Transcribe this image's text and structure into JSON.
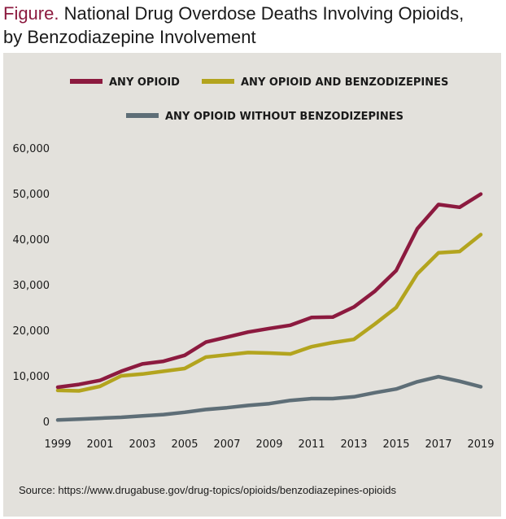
{
  "figure": {
    "label": "Figure.",
    "title_line1": "National Drug Overdose Deaths Involving Opioids,",
    "title_line2": "by Benzodiazepine Involvement",
    "source": "Source: https://www.drugabuse.gov/drug-topics/opioids/benzodiazepines-opioids"
  },
  "colors": {
    "title_accent": "#8c1a3f",
    "panel_background": "#e3e1dc"
  },
  "chart_data": {
    "type": "line",
    "title": "National Drug Overdose Deaths Involving Opioids, by Benzodiazepine Involvement",
    "xlabel": "",
    "ylabel": "",
    "x": [
      1999,
      2000,
      2001,
      2002,
      2003,
      2004,
      2005,
      2006,
      2007,
      2008,
      2009,
      2010,
      2011,
      2012,
      2013,
      2014,
      2015,
      2016,
      2017,
      2018,
      2019
    ],
    "xlim": [
      1999,
      2019
    ],
    "ylim": [
      0,
      60000
    ],
    "x_ticks": [
      "1999",
      "2001",
      "2003",
      "2005",
      "2007",
      "2009",
      "2011",
      "2013",
      "2015",
      "2017",
      "2019"
    ],
    "x_tick_values": [
      1999,
      2001,
      2003,
      2005,
      2007,
      2009,
      2011,
      2013,
      2015,
      2017,
      2019
    ],
    "y_ticks": [
      "0",
      "10,000",
      "20,000",
      "30,000",
      "40,000",
      "50,000",
      "60,000"
    ],
    "y_tick_values": [
      0,
      10000,
      20000,
      30000,
      40000,
      50000,
      60000
    ],
    "grid": false,
    "legend_position": "top",
    "series": [
      {
        "name": "ANY OPIOID",
        "color": "#8c1a3f",
        "values": [
          7500,
          8100,
          9000,
          11000,
          12600,
          13200,
          14500,
          17400,
          18500,
          19600,
          20400,
          21100,
          22800,
          22900,
          25100,
          28600,
          33100,
          42300,
          47600,
          47000,
          49900
        ]
      },
      {
        "name": "ANY OPIOID AND BENZODIZEPINES",
        "color": "#b3a41e",
        "values": [
          6800,
          6700,
          7700,
          10000,
          10400,
          11000,
          11600,
          14100,
          14600,
          15100,
          15000,
          14800,
          16400,
          17300,
          18000,
          21400,
          25000,
          32400,
          37000,
          37300,
          41000
        ]
      },
      {
        "name": "ANY OPIOID WITHOUT BENZODIZEPINES",
        "color": "#5e6e77",
        "values": [
          300,
          500,
          700,
          900,
          1200,
          1500,
          2000,
          2600,
          3000,
          3500,
          3900,
          4600,
          5000,
          5000,
          5400,
          6300,
          7100,
          8700,
          9800,
          8800,
          7600
        ]
      }
    ]
  }
}
